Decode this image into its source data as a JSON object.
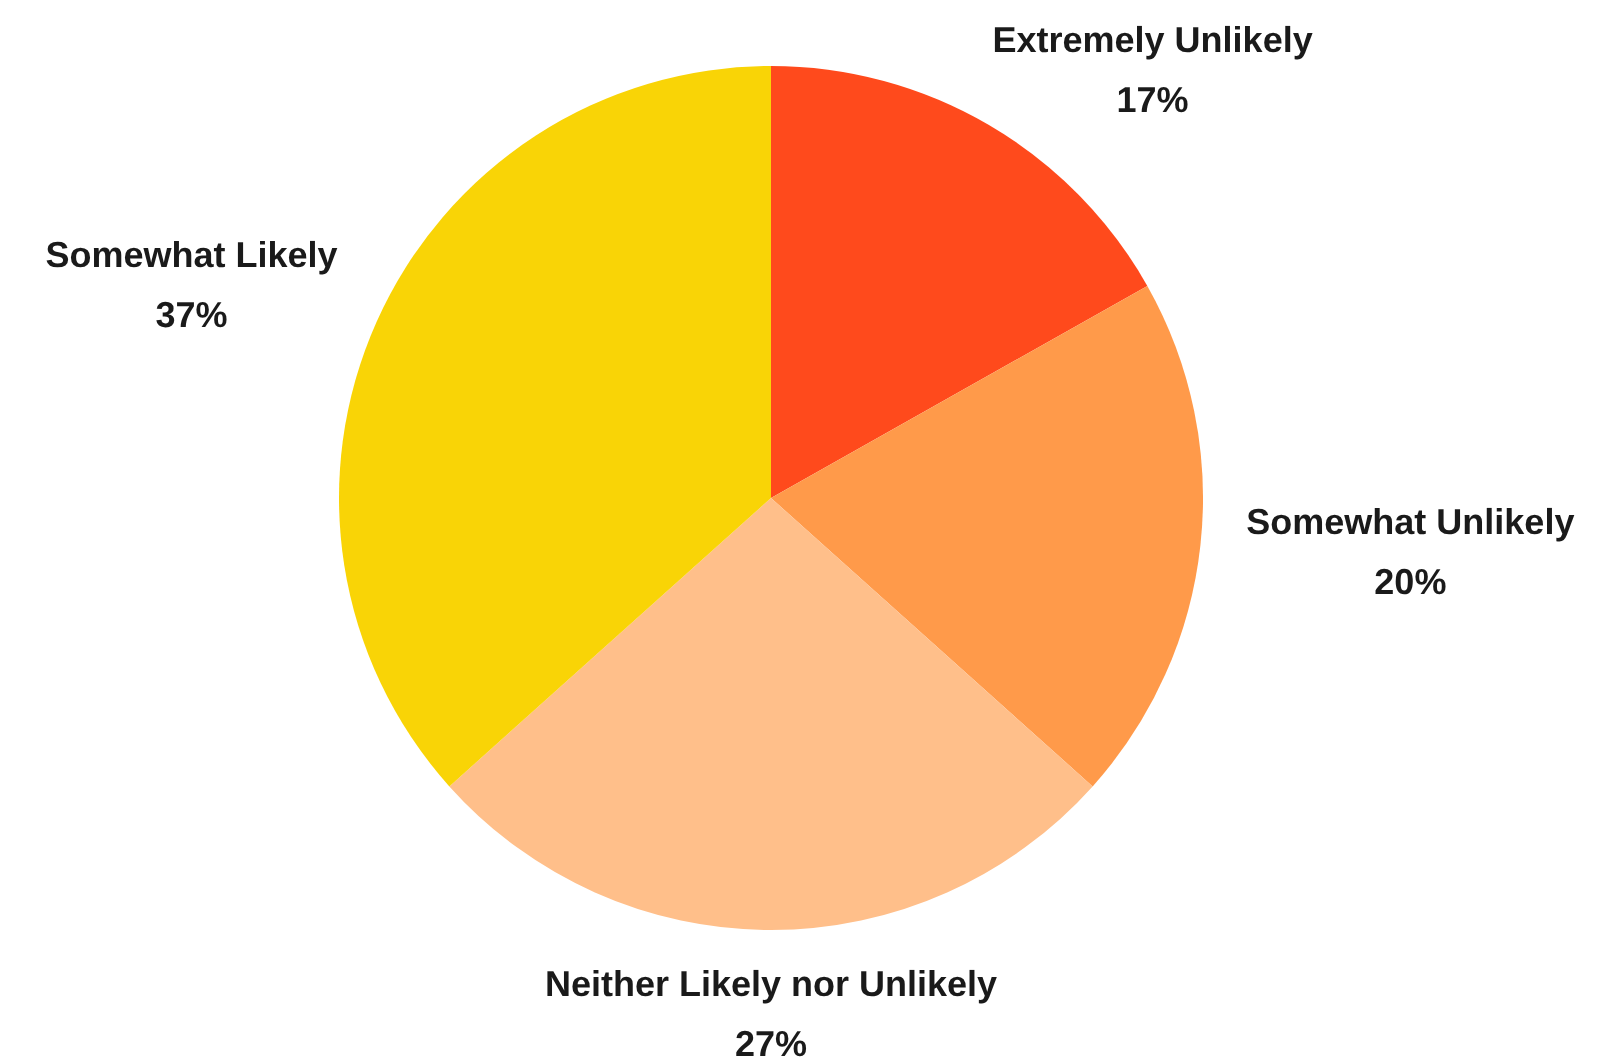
{
  "chart_data": {
    "type": "pie",
    "categories": [
      "Extremely Unlikely",
      "Somewhat Unlikely",
      "Neither Likely nor Unlikely",
      "Somewhat Likely"
    ],
    "values": [
      17,
      20,
      27,
      37
    ],
    "value_labels": [
      "17%",
      "20%",
      "27%",
      "37%"
    ],
    "colors": [
      "#ff4a1c",
      "#ff9a4a",
      "#ffbf8a",
      "#f9d406"
    ],
    "legend": false
  }
}
